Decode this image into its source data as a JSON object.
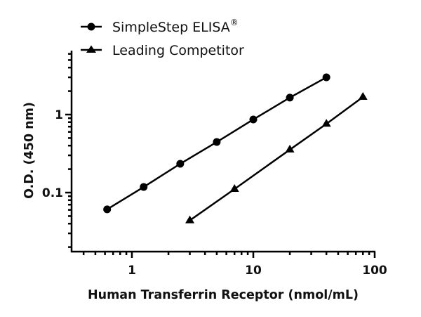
{
  "chart_data": {
    "type": "line",
    "title": "",
    "xlabel": "Human Transferrin Receptor (nmol/mL)",
    "ylabel": "O.D. (450 nm)",
    "xscale": "log",
    "yscale": "log",
    "xlim": [
      0.32,
      100
    ],
    "ylim": [
      0.018,
      6.6
    ],
    "x_ticks": [
      1,
      10,
      100
    ],
    "x_tick_labels": [
      "1",
      "10",
      "100"
    ],
    "y_ticks": [
      0.1,
      1
    ],
    "y_tick_labels": [
      "0.1",
      "1"
    ],
    "grid": false,
    "legend_position": "top-left",
    "series": [
      {
        "name": "SimpleStep ELISA®",
        "marker": "circle",
        "color": "#000000",
        "x": [
          0.625,
          1.25,
          2.5,
          5,
          10,
          20,
          40
        ],
        "values": [
          0.061,
          0.118,
          0.234,
          0.445,
          0.865,
          1.65,
          3.0
        ]
      },
      {
        "name": "Leading Competitor",
        "marker": "triangle",
        "color": "#000000",
        "x": [
          3,
          7,
          20,
          40,
          80
        ],
        "values": [
          0.044,
          0.111,
          0.355,
          0.76,
          1.68
        ]
      }
    ]
  },
  "legend": {
    "items": [
      {
        "label": "SimpleStep ELISA",
        "superscript": "®",
        "marker": "circle"
      },
      {
        "label": "Leading Competitor",
        "superscript": "",
        "marker": "triangle"
      }
    ]
  },
  "axes": {
    "x_title": "Human Transferrin Receptor (nmol/mL)",
    "y_title": "O.D. (450 nm)",
    "x_ticks": [
      "1",
      "10",
      "100"
    ],
    "y_ticks": [
      "0.1",
      "1"
    ]
  }
}
